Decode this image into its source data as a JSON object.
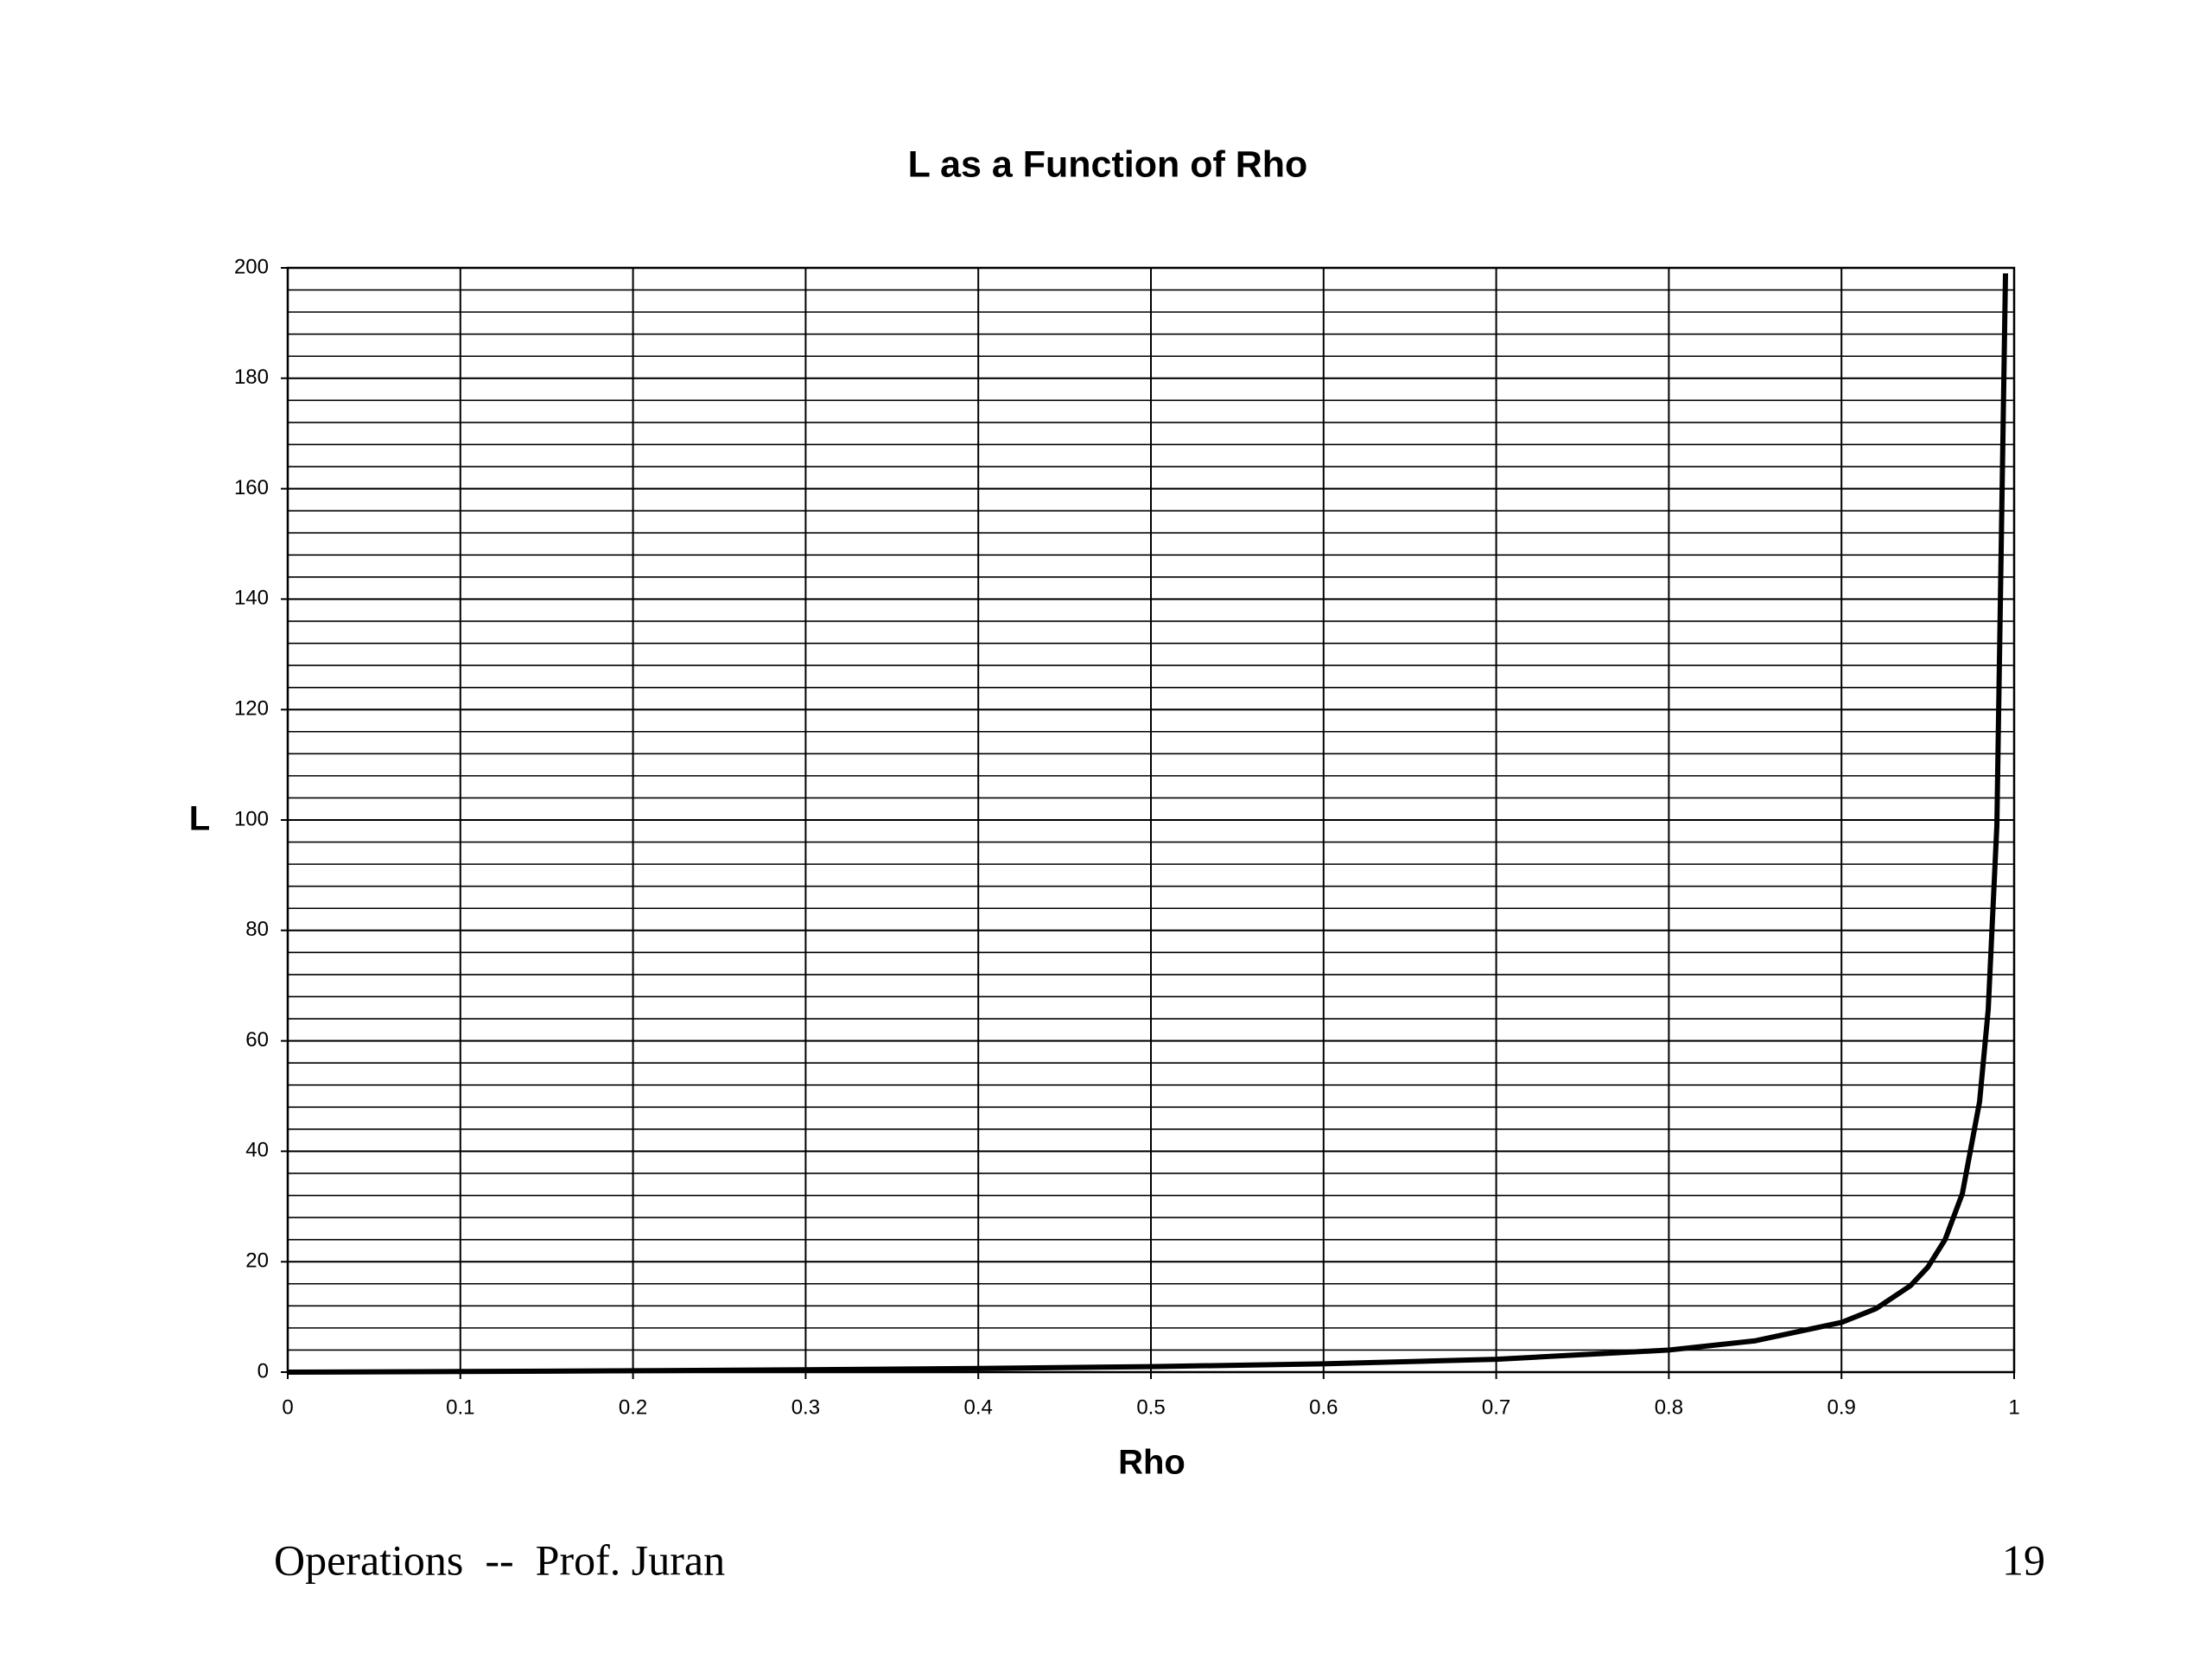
{
  "chart_data": {
    "type": "line",
    "title": "L as a Function of Rho",
    "x_label": "Rho",
    "y_label": "L",
    "x": [
      0,
      0.1,
      0.2,
      0.3,
      0.4,
      0.5,
      0.6,
      0.7,
      0.8,
      0.85,
      0.9,
      0.92,
      0.94,
      0.95,
      0.96,
      0.97,
      0.98,
      0.985,
      0.99,
      0.995
    ],
    "series": [
      {
        "name": "L",
        "color": "#000000",
        "values": [
          0,
          0.11,
          0.25,
          0.43,
          0.67,
          1,
          1.5,
          2.33,
          4,
          5.67,
          9,
          11.5,
          15.67,
          19,
          24,
          32.33,
          49,
          65.67,
          99,
          199
        ]
      }
    ],
    "xlim": [
      0,
      1
    ],
    "xticks": [
      0,
      0.1,
      0.2,
      0.3,
      0.4,
      0.5,
      0.6,
      0.7,
      0.8,
      0.9,
      1
    ],
    "ylim": [
      0,
      200
    ],
    "yticks": [
      0,
      20,
      40,
      60,
      80,
      100,
      120,
      140,
      160,
      180,
      200
    ],
    "grid": true,
    "minor_grid_step": 4
  },
  "footer": {
    "left": "Operations  --  Prof. Juran",
    "page_number": "19"
  }
}
